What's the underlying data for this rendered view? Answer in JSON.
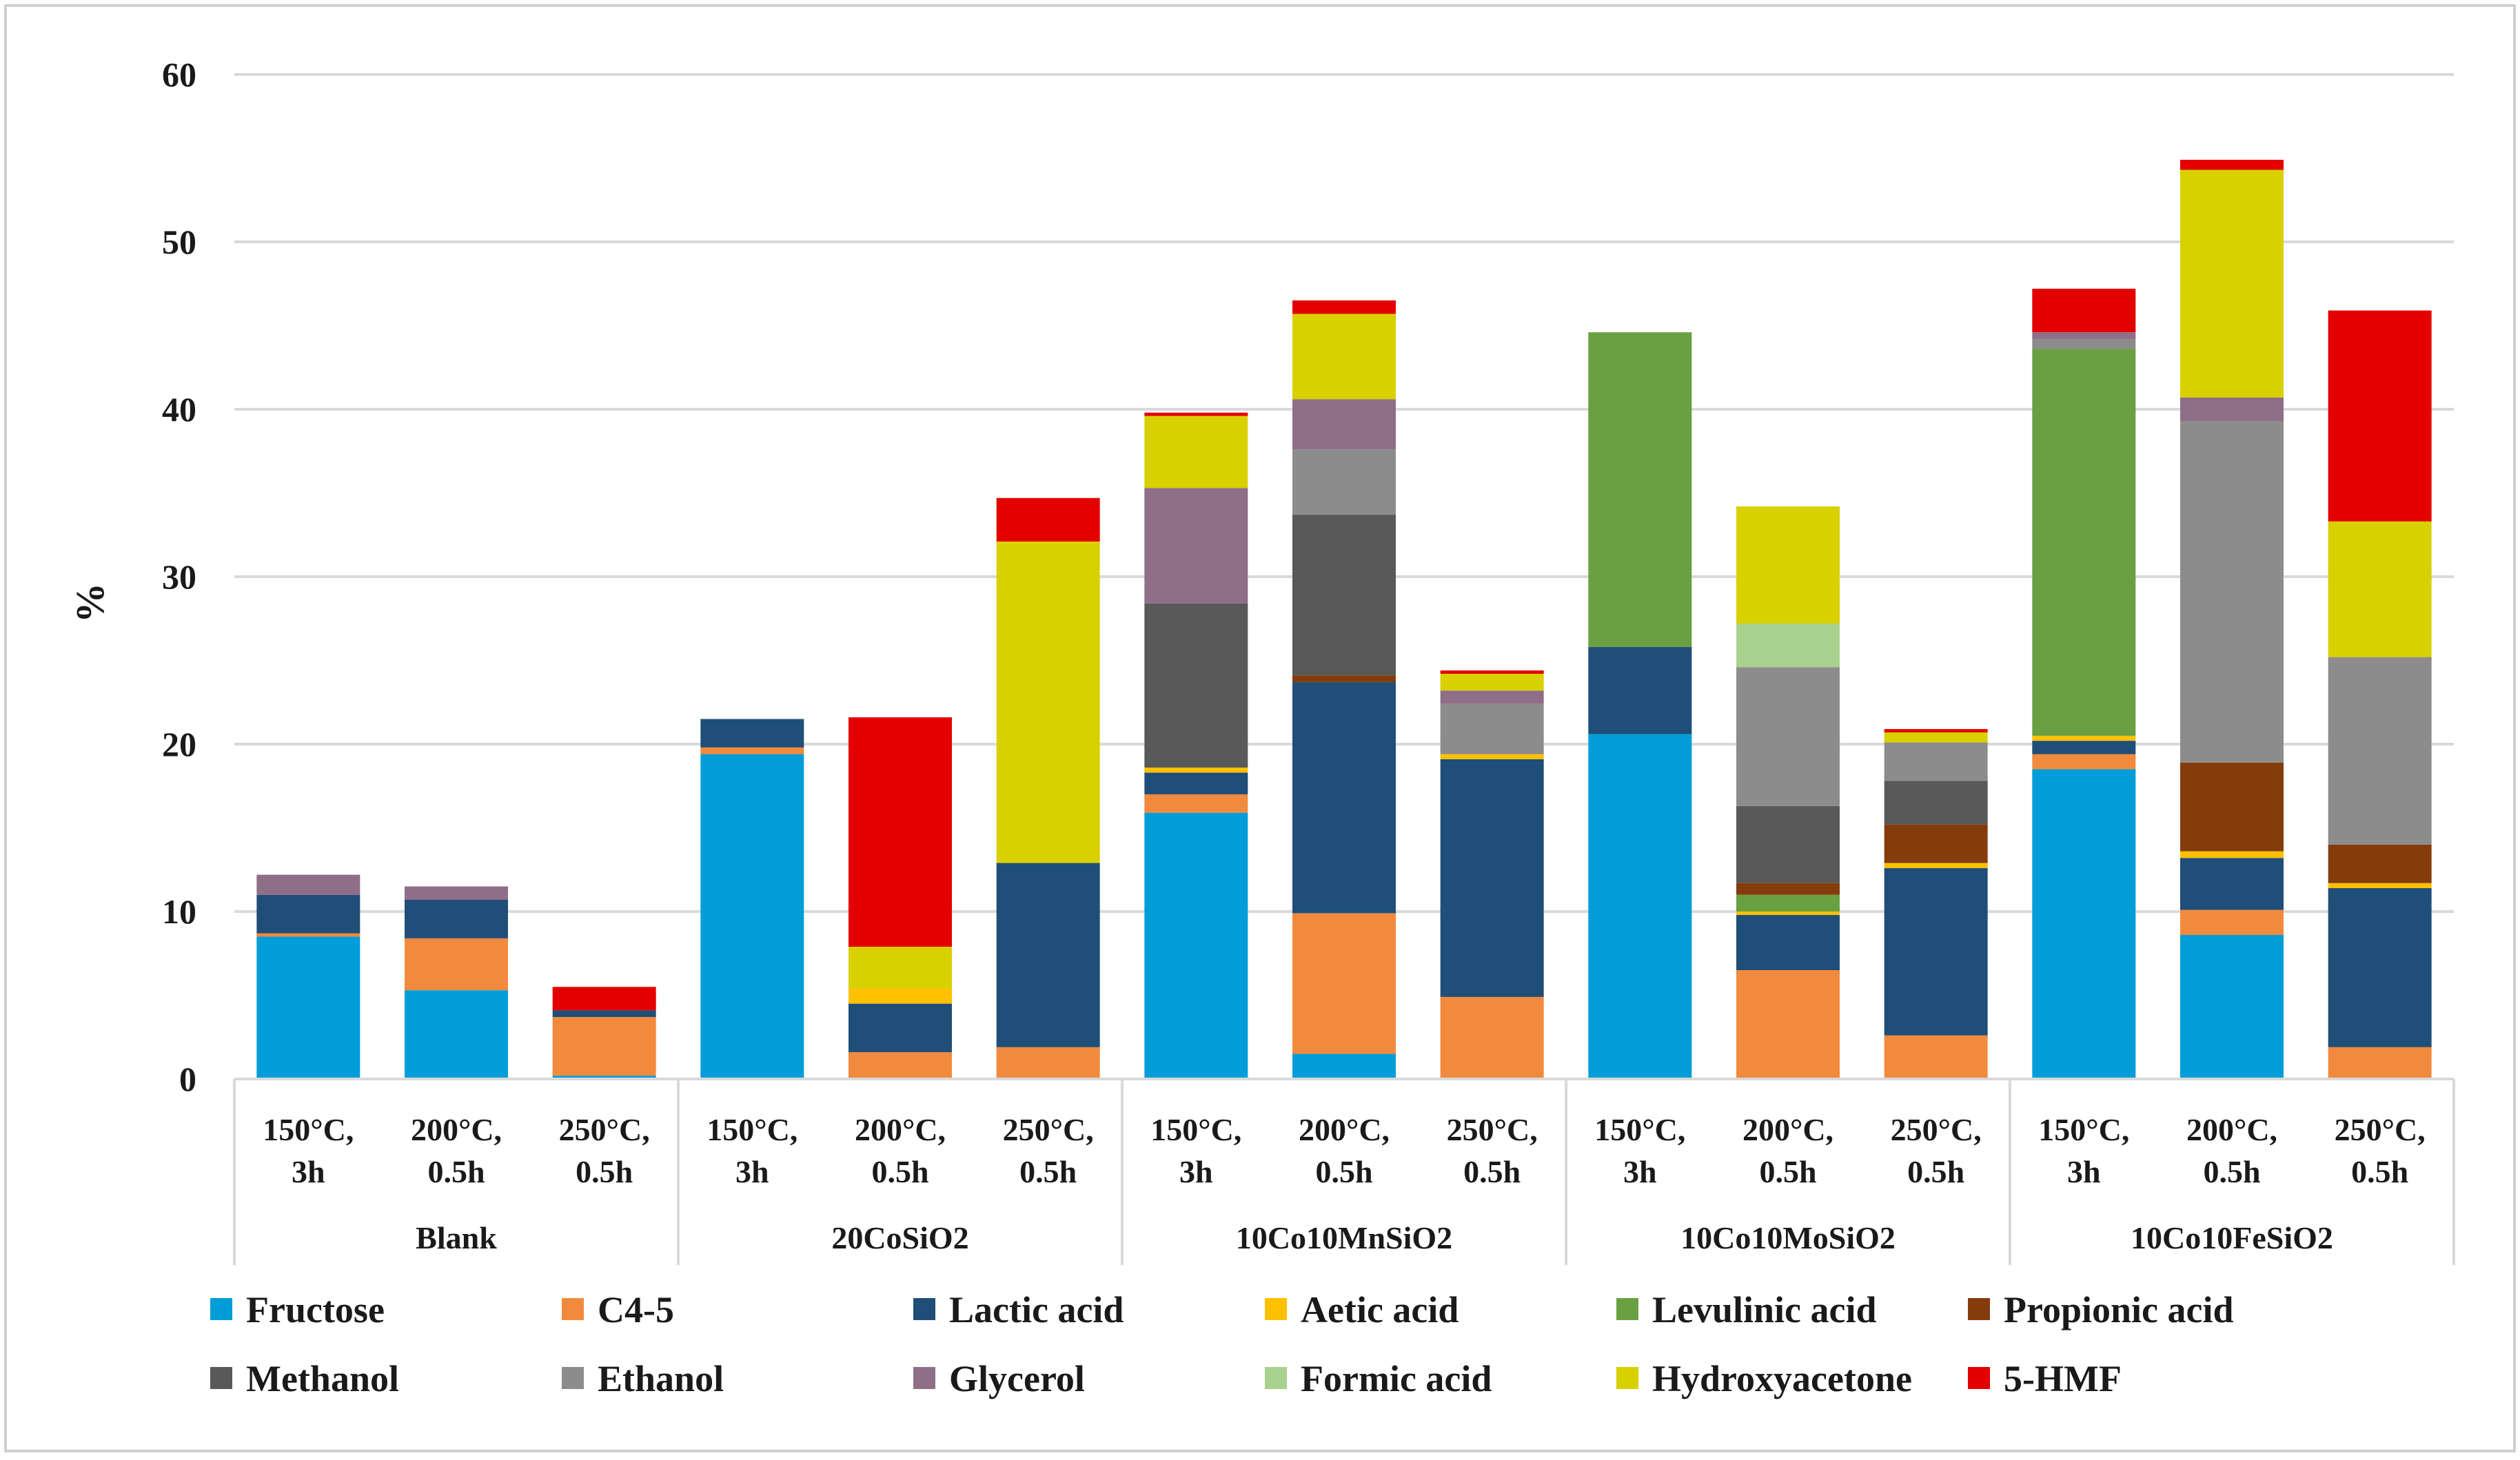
{
  "chart_data": {
    "type": "bar",
    "stacked": true,
    "title": "",
    "xlabel": "",
    "ylabel": "%",
    "ylim": [
      0,
      60
    ],
    "yticks": [
      0,
      10,
      20,
      30,
      40,
      50,
      60
    ],
    "grid": true,
    "legend_position": "bottom",
    "groups": [
      {
        "name": "Blank",
        "conditions": [
          {
            "line1": "150°C,",
            "line2": "3h"
          },
          {
            "line1": "200°C,",
            "line2": "0.5h"
          },
          {
            "line1": "250°C,",
            "line2": "0.5h"
          }
        ]
      },
      {
        "name": "20CoSiO2",
        "conditions": [
          {
            "line1": "150°C,",
            "line2": "3h"
          },
          {
            "line1": "200°C,",
            "line2": "0.5h"
          },
          {
            "line1": "250°C,",
            "line2": "0.5h"
          }
        ]
      },
      {
        "name": "10Co10MnSiO2",
        "conditions": [
          {
            "line1": "150°C,",
            "line2": "3h"
          },
          {
            "line1": "200°C,",
            "line2": "0.5h"
          },
          {
            "line1": "250°C,",
            "line2": "0.5h"
          }
        ]
      },
      {
        "name": "10Co10MoSiO2",
        "conditions": [
          {
            "line1": "150°C,",
            "line2": "3h"
          },
          {
            "line1": "200°C,",
            "line2": "0.5h"
          },
          {
            "line1": "250°C,",
            "line2": "0.5h"
          }
        ]
      },
      {
        "name": "10Co10FeSiO2",
        "conditions": [
          {
            "line1": "150°C,",
            "line2": "3h"
          },
          {
            "line1": "200°C,",
            "line2": "0.5h"
          },
          {
            "line1": "250°C,",
            "line2": "0.5h"
          }
        ]
      }
    ],
    "series": [
      {
        "name": "Fructose",
        "color": "#009dd9",
        "values": [
          8.5,
          5.3,
          0.2,
          19.4,
          0,
          0,
          15.9,
          1.5,
          0,
          20.6,
          0,
          0,
          18.5,
          8.6,
          0
        ]
      },
      {
        "name": "C4-5",
        "color": "#f28a3d",
        "values": [
          0.2,
          3.1,
          3.5,
          0.4,
          1.6,
          1.9,
          1.1,
          8.4,
          4.9,
          0,
          6.5,
          2.6,
          0.9,
          1.5,
          1.9
        ]
      },
      {
        "name": "Lactic acid",
        "color": "#1f4e79",
        "values": [
          2.3,
          2.3,
          0.4,
          1.7,
          2.9,
          11.0,
          1.3,
          13.8,
          14.2,
          5.2,
          3.3,
          10.0,
          0.8,
          3.1,
          9.5
        ]
      },
      {
        "name": "Aetic acid",
        "color": "#ffc000",
        "values": [
          0,
          0,
          0,
          0,
          0.9,
          0,
          0.3,
          0,
          0.3,
          0,
          0.2,
          0.3,
          0.3,
          0.4,
          0.3
        ]
      },
      {
        "name": "Levulinic acid",
        "color": "#6aa042",
        "values": [
          0,
          0,
          0,
          0,
          0,
          0,
          0,
          0,
          0,
          18.8,
          1.0,
          0,
          23.1,
          0,
          0
        ]
      },
      {
        "name": "Propionic acid",
        "color": "#843c0c",
        "values": [
          0,
          0,
          0,
          0,
          0,
          0,
          0,
          0.4,
          0,
          0,
          0.7,
          2.3,
          0,
          5.3,
          2.3
        ]
      },
      {
        "name": "Methanol",
        "color": "#595959",
        "values": [
          0,
          0,
          0,
          0,
          0,
          0,
          9.8,
          9.6,
          0,
          0,
          4.6,
          2.6,
          0,
          0,
          0
        ]
      },
      {
        "name": "Ethanol",
        "color": "#8c8c8c",
        "values": [
          0,
          0,
          0,
          0,
          0,
          0,
          0,
          3.9,
          3.0,
          0,
          8.3,
          2.3,
          0.6,
          20.4,
          11.2
        ]
      },
      {
        "name": "Glycerol",
        "color": "#8e6f87",
        "values": [
          1.2,
          0.8,
          0,
          0,
          0,
          0,
          6.9,
          3.0,
          0.8,
          0,
          0,
          0,
          0.4,
          1.4,
          0
        ]
      },
      {
        "name": "Formic acid",
        "color": "#a9d18e",
        "values": [
          0,
          0,
          0,
          0,
          0,
          0,
          0,
          0,
          0,
          0,
          2.6,
          0,
          0,
          0,
          0
        ]
      },
      {
        "name": "Hydroxyacetone",
        "color": "#d9d000",
        "values": [
          0,
          0,
          0,
          0,
          2.5,
          19.2,
          4.3,
          5.1,
          1.0,
          0,
          7.0,
          0.6,
          0,
          13.6,
          8.1
        ]
      },
      {
        "name": "5-HMF",
        "color": "#e30000",
        "values": [
          0,
          0,
          1.4,
          0,
          13.7,
          2.6,
          0.2,
          0.8,
          0.2,
          0,
          0,
          0.2,
          2.6,
          0.6,
          12.6
        ]
      }
    ]
  }
}
